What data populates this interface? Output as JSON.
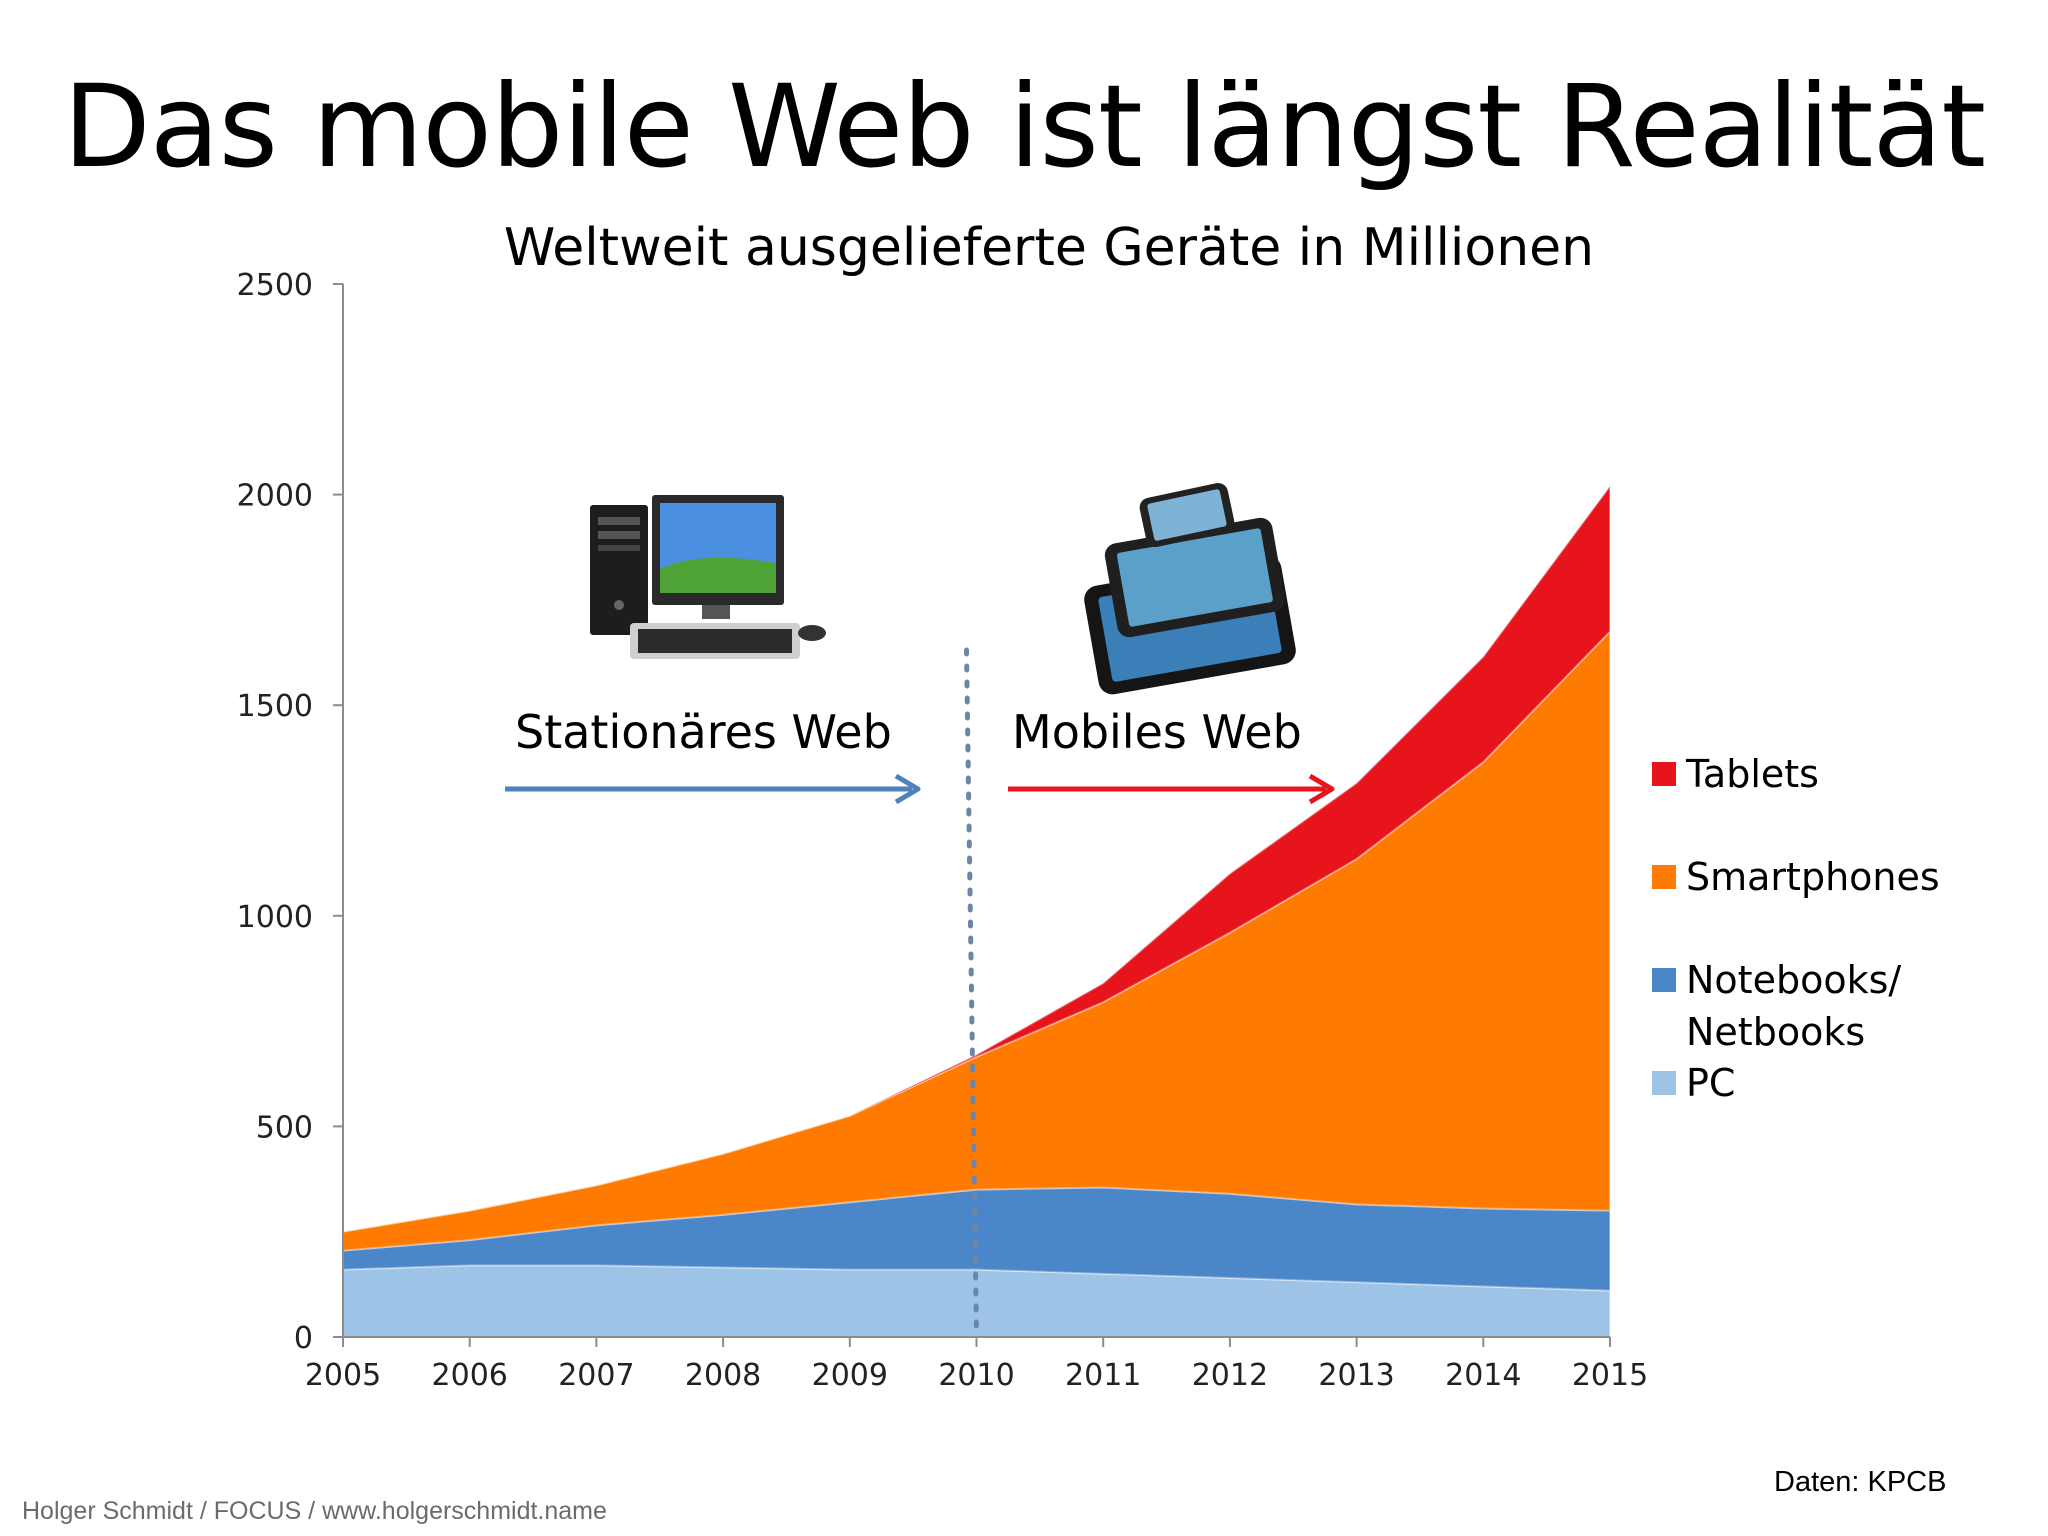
{
  "title": "Das mobile Web ist längst Realität",
  "subtitle": "Weltweit ausgelieferte Geräte in Millionen",
  "footer_credit": "Holger Schmidt / FOCUS / www.holgerschmidt.name",
  "footer_source": "Daten: KPCB",
  "zones": {
    "left_label": "Stationäres Web",
    "right_label": "Mobiles Web",
    "left_color": "#4f81bd",
    "right_color": "#e8141b"
  },
  "icons": {
    "left": "desktop-pc-icon",
    "right": "tablets-smartphone-icon"
  },
  "chart_data": {
    "type": "area",
    "stacked": true,
    "x": [
      2005,
      2006,
      2007,
      2008,
      2009,
      2010,
      2011,
      2012,
      2013,
      2014,
      2015
    ],
    "ylim": [
      0,
      2500
    ],
    "yticks": [
      0,
      500,
      1000,
      1500,
      2000,
      2500
    ],
    "xlabel": "",
    "ylabel": "",
    "divider_x": 2010,
    "legend_position": "right",
    "series": [
      {
        "name": "PC",
        "color": "#9dc3e6",
        "values": [
          160,
          170,
          170,
          165,
          160,
          160,
          150,
          140,
          130,
          120,
          110
        ]
      },
      {
        "name": "Notebooks/ Netbooks",
        "color": "#4a86c8",
        "values": [
          45,
          60,
          95,
          125,
          160,
          190,
          205,
          200,
          185,
          185,
          190
        ]
      },
      {
        "name": "Smartphones",
        "color": "#ff7a00",
        "values": [
          45,
          70,
          95,
          145,
          205,
          315,
          440,
          620,
          820,
          1060,
          1375
        ]
      },
      {
        "name": "Tablets",
        "color": "#e8141b",
        "values": [
          0,
          0,
          0,
          0,
          0,
          5,
          45,
          140,
          180,
          250,
          345
        ]
      }
    ]
  }
}
